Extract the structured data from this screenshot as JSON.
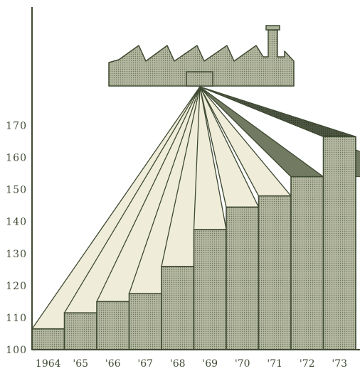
{
  "chart_data": {
    "type": "bar",
    "title": "",
    "xlabel": "",
    "ylabel": "",
    "categories": [
      "1964",
      "'65",
      "'66",
      "'67",
      "'68",
      "'69",
      "'70",
      "'71",
      "'72",
      "'73"
    ],
    "values": [
      106.5,
      111.5,
      115,
      117.5,
      126,
      137.5,
      144.5,
      148,
      154,
      166.5
    ],
    "yticks": [
      "100",
      "110",
      "120",
      "130",
      "140",
      "150",
      "160",
      "170"
    ],
    "ylim": [
      100,
      180
    ],
    "grid": false,
    "colors": {
      "ink": "#3f4a33",
      "bar_fill": "#adb29a",
      "ray_fill": "#efedd9",
      "ray_shadow": "#737a62",
      "dark_wedge": "#4b5440",
      "factory_fill": "#adb29a"
    },
    "illustration": "factory-icon"
  }
}
